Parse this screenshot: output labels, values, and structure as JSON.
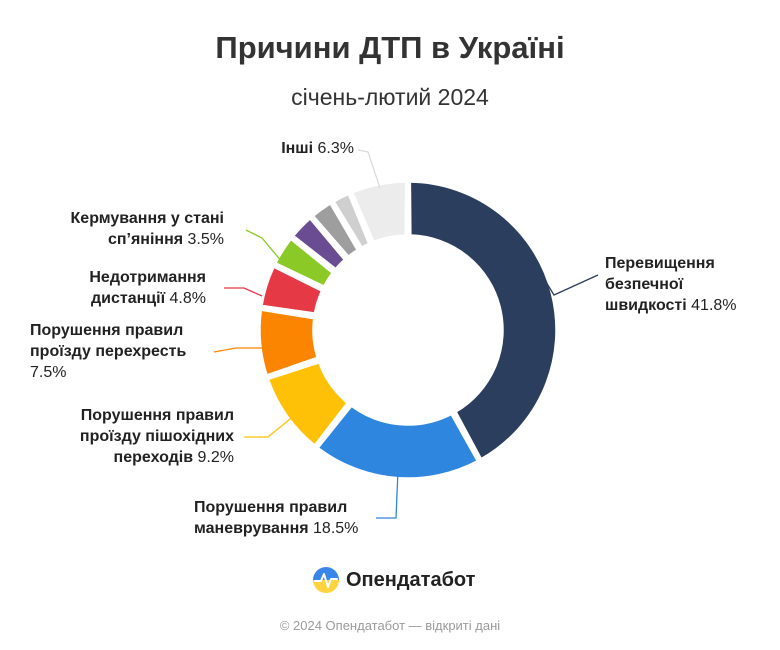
{
  "header": {
    "title": "Причини ДТП в Україні",
    "subtitle": "січень-лютий 2024"
  },
  "chart_data": {
    "type": "pie",
    "donut": true,
    "title": "Причини ДТП в Україні",
    "subtitle": "січень-лютий 2024",
    "slices": [
      {
        "name": "Перевищення безпечної швидкості",
        "value": 41.8,
        "value_label": "41.8%",
        "color": "#2c3e5e"
      },
      {
        "name": "Порушення правил маневрування",
        "value": 18.5,
        "value_label": "18.5%",
        "color": "#2e86de"
      },
      {
        "name": "Порушення правил проїзду пішохідних переходів",
        "value": 9.2,
        "value_label": "9.2%",
        "color": "#ffc107"
      },
      {
        "name": "Порушення правил проїзду перехресть",
        "value": 7.5,
        "value_label": "7.5%",
        "color": "#fb8500"
      },
      {
        "name": "Недотримання дистанції",
        "value": 4.8,
        "value_label": "4.8%",
        "color": "#e63946"
      },
      {
        "name": "Кермування у стані сп’яніння",
        "value": 3.5,
        "value_label": "3.5%",
        "color": "#8ac926"
      },
      {
        "name": "",
        "value": 3.0,
        "value_label": "",
        "color": "#6a4c93"
      },
      {
        "name": "",
        "value": 2.7,
        "value_label": "",
        "color": "#9e9e9e"
      },
      {
        "name": "",
        "value": 2.2,
        "value_label": "",
        "color": "#cfcfcf"
      },
      {
        "name": "Інші",
        "value": 6.3,
        "value_label": "6.3%",
        "color": "#ececec"
      }
    ]
  },
  "labels": [
    {
      "lines": [
        "Перевищення",
        "безпечної"
      ],
      "last_bold": "швидкості",
      "value": "41.8%"
    },
    {
      "lines": [
        "Порушення правил"
      ],
      "last_bold": "маневрування",
      "value": "18.5%"
    },
    {
      "lines": [
        "Порушення правил",
        "проїзду пішохідних"
      ],
      "last_bold": "переходів",
      "value": "9.2%"
    },
    {
      "lines": [
        "Порушення правил"
      ],
      "last_bold": "проїзду перехресть",
      "value": "7.5%",
      "value_own_line": true
    },
    {
      "lines": [
        "Недотримання"
      ],
      "last_bold": "дистанції",
      "value": "4.8%"
    },
    {
      "lines": [
        "Кермування у стані"
      ],
      "last_bold": "сп’яніння",
      "value": "3.5%"
    },
    null,
    null,
    null,
    {
      "lines": [],
      "last_bold": "Інші",
      "value": "6.3%"
    }
  ],
  "logo": {
    "text": "Опендатабот",
    "icon": "opendatabot-logo-icon"
  },
  "footer": {
    "text": "© 2024 Опендатабот — відкриті дані"
  }
}
